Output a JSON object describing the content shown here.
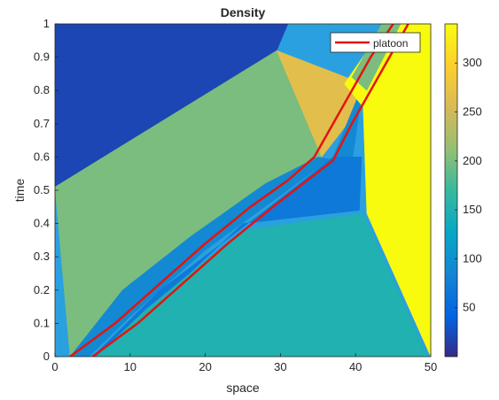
{
  "chart_data": {
    "type": "heatmap",
    "title": "Density",
    "xlabel": "space",
    "ylabel": "time",
    "xlim": [
      0,
      50
    ],
    "ylim": [
      0,
      1
    ],
    "x_ticks": [
      "0",
      "10",
      "20",
      "30",
      "40",
      "50"
    ],
    "y_ticks": [
      "0",
      "0.1",
      "0.2",
      "0.3",
      "0.4",
      "0.5",
      "0.6",
      "0.7",
      "0.8",
      "0.9",
      "1"
    ],
    "colorbar": {
      "colormap": "parula",
      "range": [
        0,
        340
      ],
      "ticks": [
        "50",
        "100",
        "150",
        "200",
        "250",
        "300"
      ]
    },
    "legend": {
      "position": "top-right",
      "entries": [
        {
          "name": "platoon",
          "color": "#e3140f"
        }
      ]
    },
    "regions": [
      {
        "label": "low-density (top-left)",
        "density": 20,
        "polygon": [
          [
            0,
            1
          ],
          [
            31,
            1
          ],
          [
            29.5,
            0.92
          ],
          [
            0,
            0.51
          ]
        ]
      },
      {
        "label": "green mid region",
        "density": 200,
        "polygon": [
          [
            0,
            0.51
          ],
          [
            29.5,
            0.92
          ],
          [
            35.5,
            0.6
          ],
          [
            32,
            0.52
          ],
          [
            24,
            0.45
          ],
          [
            10,
            0.22
          ],
          [
            2,
            0
          ]
        ]
      },
      {
        "label": "orange fan",
        "density": 265,
        "polygon": [
          [
            29.5,
            0.92
          ],
          [
            41,
            0.82
          ],
          [
            40.3,
            0.74
          ],
          [
            35.5,
            0.6
          ]
        ]
      },
      {
        "label": "platoon interior",
        "density": 90,
        "polygon": [
          [
            4.5,
            0
          ],
          [
            10,
            0.12
          ],
          [
            20,
            0.32
          ],
          [
            37,
            0.6
          ],
          [
            41,
            0.82
          ],
          [
            39.5,
            0.58
          ],
          [
            35,
            0.6
          ],
          [
            28,
            0.52
          ],
          [
            18,
            0.36
          ],
          [
            9,
            0.2
          ],
          [
            2,
            0
          ]
        ]
      },
      {
        "label": "dark blue wedge",
        "density": 70,
        "polygon": [
          [
            6,
            0
          ],
          [
            25,
            0.4
          ],
          [
            40.5,
            0.44
          ],
          [
            40.8,
            0.6
          ],
          [
            37,
            0.6
          ],
          [
            28,
            0.44
          ],
          [
            14,
            0.2
          ],
          [
            5,
            0
          ]
        ]
      },
      {
        "label": "light blue (bottom)",
        "density": 150,
        "polygon": [
          [
            5.5,
            0
          ],
          [
            49.5,
            0
          ],
          [
            41,
            0.43
          ],
          [
            25,
            0.38
          ],
          [
            12,
            0.14
          ]
        ]
      },
      {
        "label": "yellow high density",
        "density": 340,
        "polygon": [
          [
            31,
            1
          ],
          [
            44,
            1
          ],
          [
            38.5,
            0.82
          ],
          [
            41,
            0.75
          ],
          [
            41.5,
            0.43
          ],
          [
            50,
            0
          ],
          [
            50,
            1
          ]
        ]
      },
      {
        "label": "green diagonal strip",
        "density": 200,
        "polygon": [
          [
            43.5,
            1
          ],
          [
            46,
            1
          ],
          [
            41.5,
            0.8
          ],
          [
            39.5,
            0.84
          ]
        ]
      }
    ],
    "series": [
      {
        "name": "platoon",
        "color": "#e3140f",
        "x": [
          2,
          8,
          14,
          20,
          26,
          31,
          34.5,
          37,
          39.5,
          42,
          45
        ],
        "y": [
          0,
          0.1,
          0.22,
          0.34,
          0.45,
          0.53,
          0.6,
          0.7,
          0.8,
          0.9,
          1
        ]
      },
      {
        "name": "",
        "color": "#e3140f",
        "x": [
          5,
          11,
          17,
          23,
          29,
          33,
          37,
          39.5,
          42,
          44.5,
          47
        ],
        "y": [
          0,
          0.1,
          0.22,
          0.34,
          0.45,
          0.52,
          0.59,
          0.7,
          0.8,
          0.9,
          1
        ]
      }
    ]
  }
}
